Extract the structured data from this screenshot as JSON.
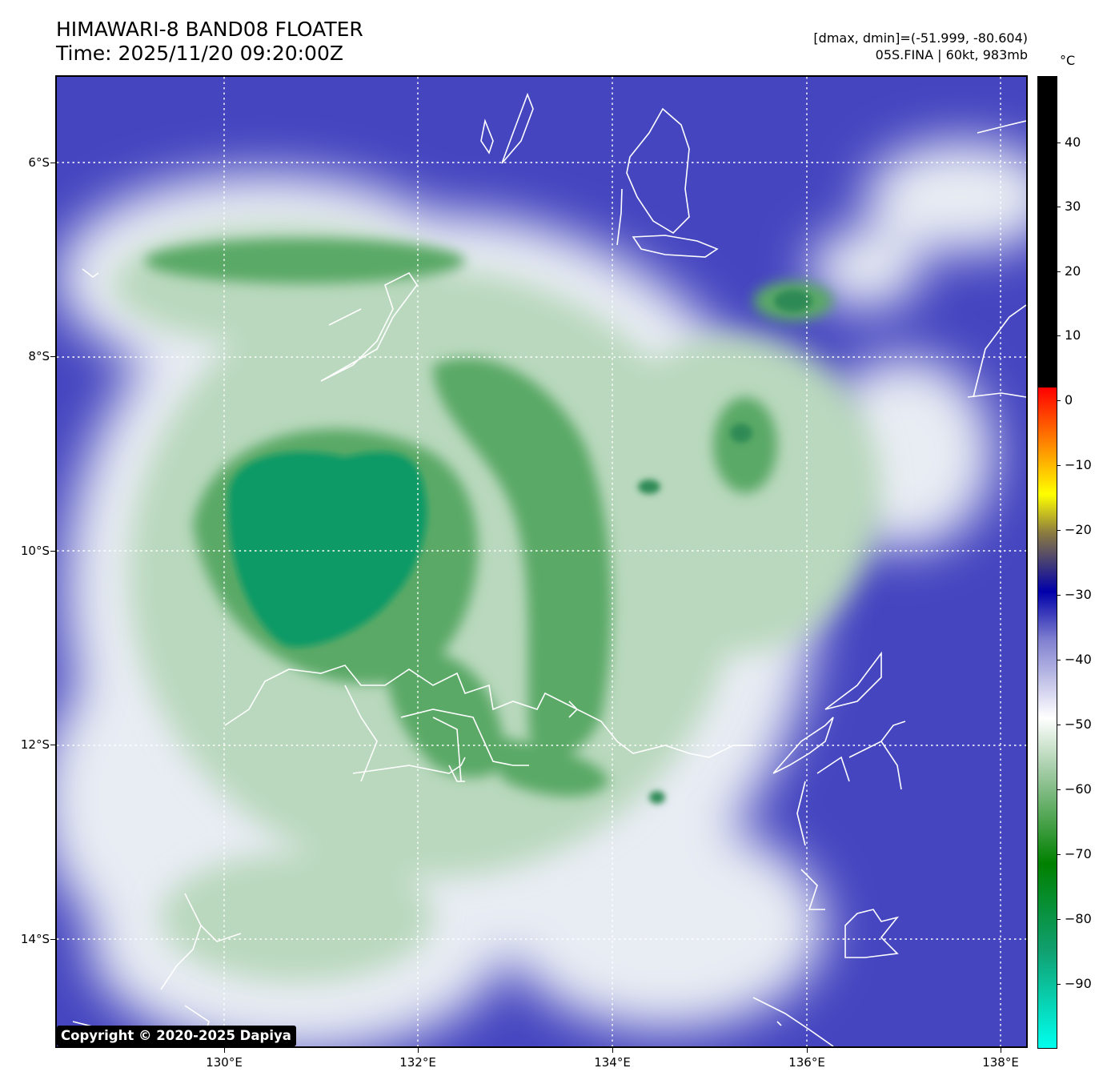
{
  "header": {
    "title_line1": "HIMAWARI-8 BAND08 FLOATER",
    "title_line2": "Time: 2025/11/20 09:20:00Z",
    "range_text": "[dmax, dmin]=(-51.999, -80.604)",
    "storm_text": "05S.FINA | 60kt, 983mb"
  },
  "map": {
    "lat_labels": [
      "6°S",
      "8°S",
      "10°S",
      "12°S",
      "14°S"
    ],
    "lon_labels": [
      "130°E",
      "132°E",
      "134°E",
      "136°E",
      "138°E"
    ],
    "background_color": "#4545c0",
    "coastline_color": "#ffffff"
  },
  "colorbar": {
    "unit": "°C",
    "tick_labels": [
      "40",
      "30",
      "20",
      "10",
      "0",
      "−10",
      "−20",
      "−30",
      "−40",
      "−50",
      "−60",
      "−70",
      "−80",
      "−90"
    ],
    "colors": [
      "#000000",
      "#ff0000",
      "#ffff00",
      "#0000aa",
      "#ffffff",
      "#008000",
      "#00ffee"
    ]
  },
  "footer": {
    "copyright": "Copyright © 2020-2025 Dapiya"
  }
}
